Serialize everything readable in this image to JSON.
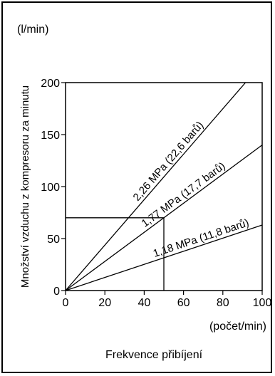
{
  "chart_data": {
    "type": "line",
    "title": "",
    "unit_y": "(l/min)",
    "ylabel": "Množství vzduchu z kompresoru za minutu",
    "unit_x": "(počet/min)",
    "xlabel": "Frekvence přibíjení",
    "xlim": [
      0,
      100
    ],
    "ylim": [
      0,
      200
    ],
    "x_ticks": [
      "0",
      "20",
      "40",
      "60",
      "80",
      "100"
    ],
    "y_ticks": [
      "0",
      "50",
      "100",
      "150",
      "200"
    ],
    "grid": false,
    "series": [
      {
        "name": "2,26 MPa (22,6 barů)",
        "x": [
          0,
          91.5
        ],
        "y": [
          0,
          200
        ]
      },
      {
        "name": "1,77 MPa (17,7 barů)",
        "x": [
          0,
          100
        ],
        "y": [
          0,
          140
        ]
      },
      {
        "name": "1,18 MPa (11,8 barů)",
        "x": [
          0,
          100
        ],
        "y": [
          0,
          63
        ]
      }
    ],
    "reference_point": {
      "x": 50,
      "y": 70
    }
  }
}
